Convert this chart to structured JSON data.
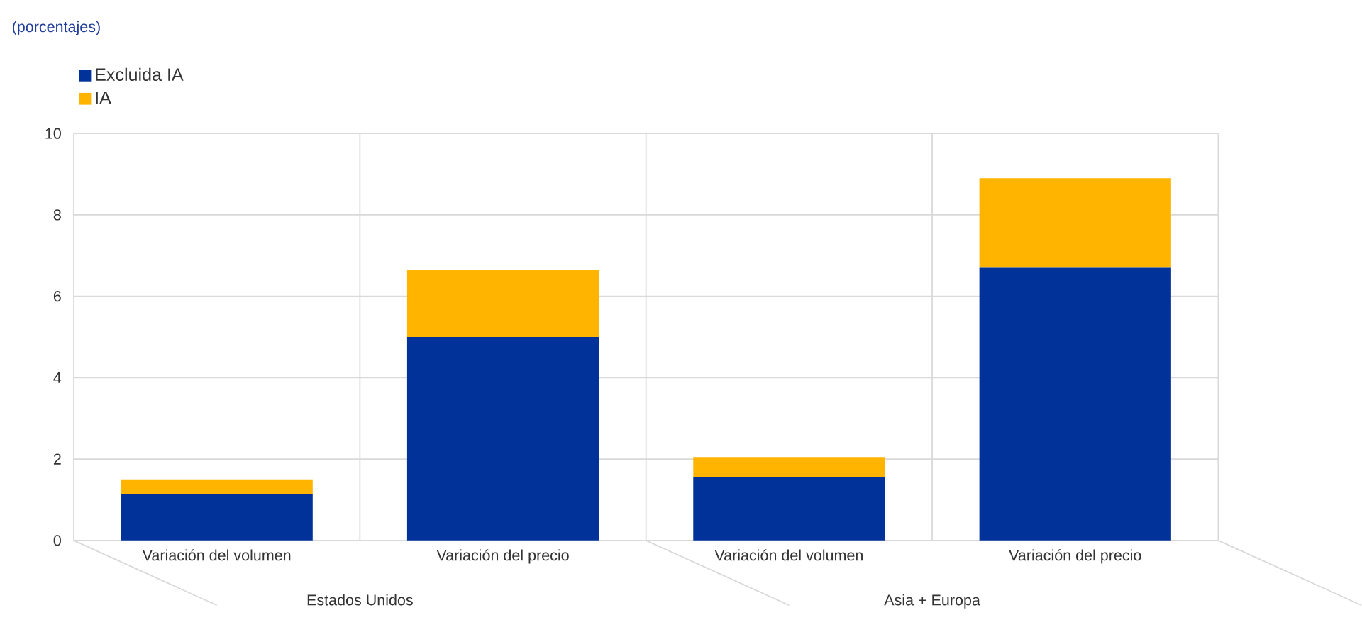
{
  "chart_data": {
    "type": "bar",
    "stacked": true,
    "title": "(porcentajes)",
    "categories": [
      "Variación del volumen",
      "Variación del precio",
      "Variación del volumen",
      "Variación del precio"
    ],
    "series": [
      {
        "name": "Excluida IA",
        "color": "#003299",
        "values": [
          1.15,
          5.0,
          1.55,
          6.7
        ]
      },
      {
        "name": "IA",
        "color": "#ffb400",
        "values": [
          0.35,
          1.65,
          0.5,
          2.2
        ]
      }
    ],
    "annotations": [
      "Estados Unidos",
      "Asia + Europa"
    ],
    "ylim": [
      0,
      10
    ],
    "yticks": [
      0,
      2,
      4,
      6,
      8,
      10
    ],
    "grid": true,
    "legend": "top left"
  }
}
